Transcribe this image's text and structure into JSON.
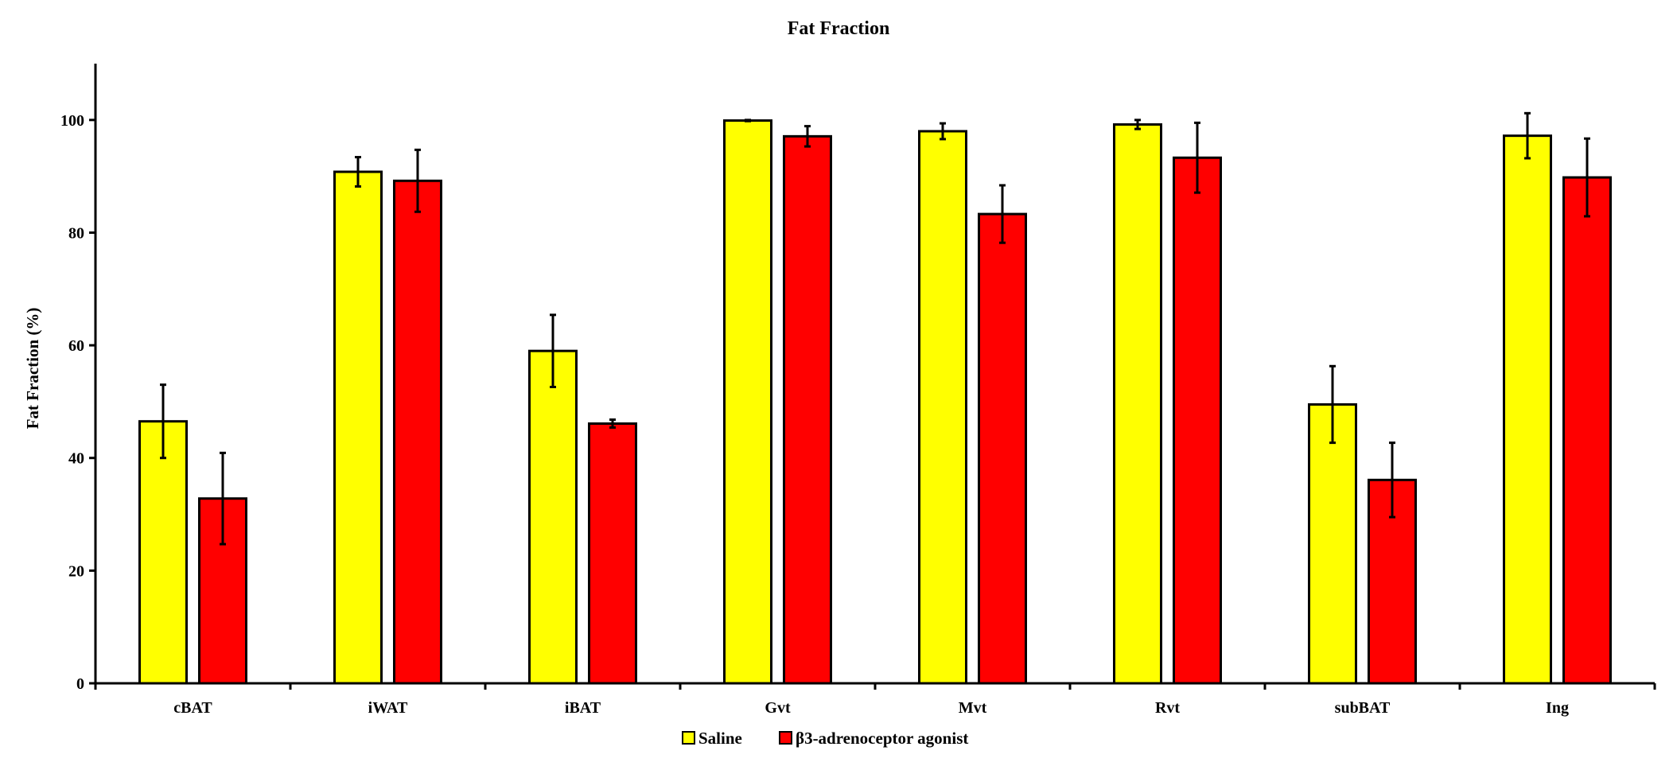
{
  "chart_data": {
    "type": "bar",
    "title": "Fat Fraction",
    "xlabel": "",
    "ylabel": "Fat Fraction (%)",
    "ylim": [
      0,
      110
    ],
    "yticks": [
      0,
      20,
      40,
      60,
      80,
      100
    ],
    "grid": false,
    "legend_position": "bottom-center",
    "categories": [
      "cBAT",
      "iWAT",
      "iBAT",
      "Gvt",
      "Mvt",
      "Rvt",
      "subBAT",
      "Ing"
    ],
    "series": [
      {
        "name": "Saline",
        "color": "#ffff00",
        "values": [
          46.5,
          90.8,
          59.0,
          99.9,
          98.0,
          99.2,
          49.5,
          97.2
        ],
        "errors": [
          6.5,
          2.6,
          6.4,
          0.1,
          1.4,
          0.8,
          6.8,
          4.0
        ]
      },
      {
        "name": "β3-adrenoceptor agonist",
        "color": "#ff0000",
        "values": [
          32.8,
          89.2,
          46.1,
          97.1,
          83.3,
          93.3,
          36.1,
          89.8
        ],
        "errors": [
          8.1,
          5.5,
          0.7,
          1.8,
          5.1,
          6.2,
          6.6,
          6.9
        ]
      }
    ]
  }
}
